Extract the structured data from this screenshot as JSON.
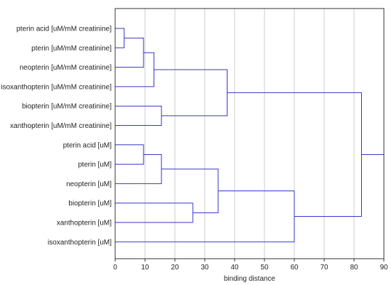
{
  "chart_data": {
    "type": "dendrogram",
    "xlabel": "binding distance",
    "xlim": [
      0,
      90
    ],
    "xticks": [
      0,
      10,
      20,
      30,
      40,
      50,
      60,
      70,
      80,
      90
    ],
    "grid": true,
    "line_color": "#3333cc",
    "grid_color": "#cccccc",
    "leaves": [
      "pterin acid [uM/mM creatinine]",
      "pterin [uM/mM creatinine]",
      "neopterin [uM/mM creatinine]",
      "isoxanthopterin [uM/mM creatinine]",
      "biopterin [uM/mM creatinine]",
      "xanthopterin [uM/mM creatinine]",
      "pterin acid [uM]",
      "pterin [uM]",
      "neopterin [uM]",
      "biopterin [uM]",
      "xanthopterin [uM]",
      "isoxanthopterin [uM]"
    ],
    "merges": [
      {
        "id": "m1",
        "children": [
          "L0",
          "L1"
        ],
        "distance": 3
      },
      {
        "id": "m2",
        "children": [
          "m1",
          "L2"
        ],
        "distance": 9.5
      },
      {
        "id": "m3",
        "children": [
          "m2",
          "L3"
        ],
        "distance": 13
      },
      {
        "id": "m4",
        "children": [
          "L4",
          "L5"
        ],
        "distance": 15.5
      },
      {
        "id": "m5",
        "children": [
          "m3",
          "m4"
        ],
        "distance": 37.5
      },
      {
        "id": "m6",
        "children": [
          "L6",
          "L7"
        ],
        "distance": 9.5
      },
      {
        "id": "m7",
        "children": [
          "m6",
          "L8"
        ],
        "distance": 15.5
      },
      {
        "id": "m8",
        "children": [
          "L9",
          "L10"
        ],
        "distance": 26
      },
      {
        "id": "m9",
        "children": [
          "m7",
          "m8"
        ],
        "distance": 34.5
      },
      {
        "id": "m10",
        "children": [
          "m9",
          "L11"
        ],
        "distance": 60
      },
      {
        "id": "m11",
        "children": [
          "m5",
          "m10"
        ],
        "distance": 82.5
      }
    ]
  }
}
